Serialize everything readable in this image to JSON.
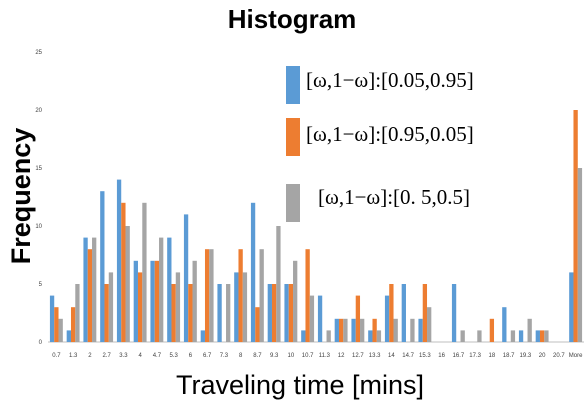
{
  "chart_data": {
    "type": "bar",
    "title": "Histogram",
    "xlabel": "Traveling time [mins]",
    "ylabel": "Frequency",
    "ylim": [
      0,
      25
    ],
    "yticks": [
      0,
      5,
      10,
      15,
      20,
      25
    ],
    "grid": false,
    "legend_position": "top-right",
    "categories": [
      "0.7",
      "1.3",
      "2",
      "2.7",
      "3.3",
      "4",
      "4.7",
      "5.3",
      "6",
      "6.7",
      "7.3",
      "8",
      "8.7",
      "9.3",
      "10",
      "10.7",
      "11.3",
      "12",
      "12.7",
      "13.3",
      "14",
      "14.7",
      "15.3",
      "16",
      "16.7",
      "17.3",
      "18",
      "18.7",
      "19.3",
      "20",
      "20.7",
      "More"
    ],
    "series": [
      {
        "name": "[ω,1−ω]:[0.05,0.95]",
        "color": "#5b9bd5",
        "values": [
          4,
          1,
          9,
          13,
          14,
          7,
          7,
          9,
          11,
          1,
          5,
          6,
          12,
          5,
          5,
          1,
          4,
          2,
          2,
          1,
          4,
          5,
          2,
          0,
          5,
          0,
          0,
          3,
          1,
          1,
          0,
          6
        ]
      },
      {
        "name": "[ω,1−ω]:[0.95,0.05]",
        "color": "#ed7d31",
        "values": [
          3,
          3,
          8,
          5,
          12,
          6,
          7,
          5,
          5,
          8,
          0,
          8,
          3,
          5,
          5,
          8,
          0,
          2,
          4,
          2,
          5,
          0,
          5,
          0,
          0,
          0,
          2,
          0,
          0,
          1,
          0,
          20
        ]
      },
      {
        "name": "[ω,1−ω]:[0. 5,0.5]",
        "color": "#a5a5a5",
        "values": [
          2,
          5,
          9,
          6,
          10,
          12,
          9,
          6,
          7,
          8,
          5,
          6,
          8,
          10,
          7,
          4,
          1,
          2,
          2,
          1,
          2,
          2,
          3,
          0,
          1,
          1,
          0,
          1,
          2,
          1,
          0,
          15
        ]
      }
    ]
  }
}
